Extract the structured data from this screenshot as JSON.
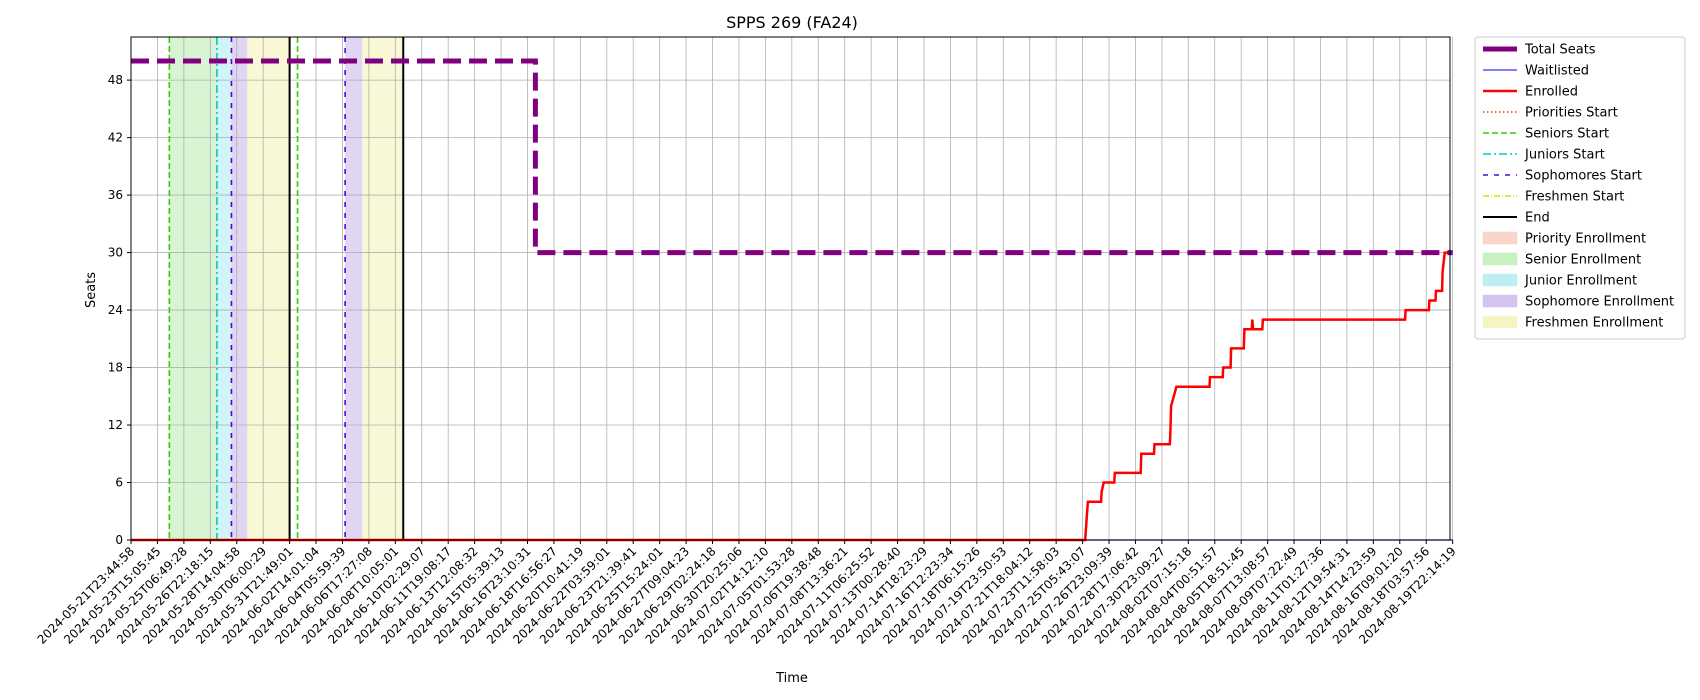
{
  "chart_data": {
    "type": "line",
    "title": "SPPS 269 (FA24)",
    "xlabel": "Time",
    "ylabel": "Seats",
    "ylim": [
      0,
      52.5
    ],
    "yticks": [
      0,
      6,
      12,
      18,
      24,
      30,
      36,
      42,
      48
    ],
    "grid": true,
    "legend_position": "outside-right",
    "x_tick_labels": [
      "2024-05-21T23:44:58",
      "2024-05-23T15:05:45",
      "2024-05-25T06:49:28",
      "2024-05-26T22:18:15",
      "2024-05-28T14:04:58",
      "2024-05-30T06:00:29",
      "2024-05-31T21:49:01",
      "2024-06-02T14:01:04",
      "2024-06-04T05:59:39",
      "2024-06-06T17:27:08",
      "2024-06-08T10:05:01",
      "2024-06-10T02:29:07",
      "2024-06-11T19:08:17",
      "2024-06-13T12:08:32",
      "2024-06-15T05:39:13",
      "2024-06-16T23:10:31",
      "2024-06-18T16:56:27",
      "2024-06-20T10:41:19",
      "2024-06-22T03:59:01",
      "2024-06-23T21:39:41",
      "2024-06-25T15:24:01",
      "2024-06-27T09:04:23",
      "2024-06-29T02:24:18",
      "2024-06-30T20:25:06",
      "2024-07-02T14:12:10",
      "2024-07-05T01:53:28",
      "2024-07-06T19:38:48",
      "2024-07-08T13:36:21",
      "2024-07-11T06:25:52",
      "2024-07-13T00:28:40",
      "2024-07-14T18:23:29",
      "2024-07-16T12:23:34",
      "2024-07-18T06:15:26",
      "2024-07-19T23:50:53",
      "2024-07-21T18:04:12",
      "2024-07-23T11:58:03",
      "2024-07-25T05:43:07",
      "2024-07-26T23:09:39",
      "2024-07-28T17:06:42",
      "2024-07-30T23:09:27",
      "2024-08-02T07:15:18",
      "2024-08-04T00:51:57",
      "2024-08-05T18:51:45",
      "2024-08-07T13:08:57",
      "2024-08-09T07:22:49",
      "2024-08-11T01:27:36",
      "2024-08-12T19:54:31",
      "2024-08-14T14:23:59",
      "2024-08-16T09:01:20",
      "2024-08-18T03:57:56",
      "2024-08-19T22:14:19"
    ],
    "x_index_range": [
      0,
      49.9
    ],
    "series": [
      {
        "name": "Total Seats",
        "color": "#800080",
        "style": "dashed-thick",
        "points": [
          [
            0,
            50
          ],
          [
            15.3,
            50
          ],
          [
            15.3,
            30
          ],
          [
            50,
            30
          ]
        ]
      },
      {
        "name": "Waitlisted",
        "color": "#0000ff",
        "style": "solid-thin",
        "points": [
          [
            0,
            0
          ],
          [
            50,
            0
          ]
        ]
      },
      {
        "name": "Enrolled",
        "color": "#ff0000",
        "style": "solid",
        "points": [
          [
            0,
            0
          ],
          [
            36.1,
            0
          ],
          [
            36.15,
            2
          ],
          [
            36.2,
            4
          ],
          [
            36.7,
            4
          ],
          [
            36.72,
            5
          ],
          [
            36.8,
            6
          ],
          [
            37.2,
            6
          ],
          [
            37.22,
            7
          ],
          [
            38.2,
            7
          ],
          [
            38.22,
            9
          ],
          [
            38.7,
            9
          ],
          [
            38.72,
            10
          ],
          [
            39.3,
            10
          ],
          [
            39.32,
            11
          ],
          [
            39.35,
            14
          ],
          [
            39.45,
            15
          ],
          [
            39.55,
            16
          ],
          [
            40.8,
            16
          ],
          [
            40.82,
            17
          ],
          [
            41.3,
            17
          ],
          [
            41.32,
            18
          ],
          [
            41.6,
            18
          ],
          [
            41.62,
            20
          ],
          [
            42.1,
            20
          ],
          [
            42.12,
            22
          ],
          [
            42.4,
            22
          ],
          [
            42.42,
            23
          ],
          [
            42.45,
            22
          ],
          [
            42.8,
            22
          ],
          [
            42.82,
            23
          ],
          [
            48.2,
            23
          ],
          [
            48.22,
            24
          ],
          [
            49.1,
            24
          ],
          [
            49.12,
            25
          ],
          [
            49.35,
            25
          ],
          [
            49.37,
            26
          ],
          [
            49.6,
            26
          ],
          [
            49.62,
            28
          ],
          [
            49.7,
            30
          ],
          [
            49.9,
            30
          ]
        ]
      }
    ],
    "vlines": [
      {
        "name": "Seniors Start",
        "x": 1.45,
        "color": "#33cc00",
        "dash": "6,3"
      },
      {
        "name": "Juniors Start",
        "x": 3.25,
        "color": "#00cccc",
        "dash": "8,3,2,3"
      },
      {
        "name": "Sophomores Start",
        "x": 3.8,
        "color": "#5500dd",
        "dash": "5,6"
      },
      {
        "name": "End",
        "x": 6.0,
        "color": "#000000",
        "dash": ""
      },
      {
        "name": "Seniors Start",
        "x": 6.3,
        "color": "#33cc00",
        "dash": "6,3"
      },
      {
        "name": "Sophomores Start",
        "x": 8.1,
        "color": "#5500dd",
        "dash": "5,6"
      },
      {
        "name": "End",
        "x": 10.3,
        "color": "#000000",
        "dash": ""
      }
    ],
    "spans": [
      {
        "name": "Senior Enrollment",
        "x0": 1.45,
        "x1": 3.25,
        "color": "#c8f0c0",
        "opacity": 0.7
      },
      {
        "name": "Junior Enrollment",
        "x0": 3.25,
        "x1": 3.8,
        "color": "#bdeff2",
        "opacity": 0.7
      },
      {
        "name": "Sophomore Enrollment",
        "x0": 3.8,
        "x1": 4.4,
        "color": "#d3c4ef",
        "opacity": 0.7
      },
      {
        "name": "Freshmen Enrollment",
        "x0": 4.4,
        "x1": 6.0,
        "color": "#f5f5c4",
        "opacity": 0.7
      },
      {
        "name": "Sophomore Enrollment",
        "x0": 8.1,
        "x1": 8.75,
        "color": "#d3c4ef",
        "opacity": 0.7
      },
      {
        "name": "Freshmen Enrollment",
        "x0": 8.75,
        "x1": 10.3,
        "color": "#f5f5c4",
        "opacity": 0.7
      }
    ],
    "legend": [
      {
        "label": "Total Seats",
        "kind": "line",
        "color": "#800080",
        "dash": "",
        "width": 5
      },
      {
        "label": "Waitlisted",
        "kind": "line",
        "color": "#0000ff",
        "dash": "",
        "width": 1
      },
      {
        "label": "Enrolled",
        "kind": "line",
        "color": "#ff0000",
        "dash": "",
        "width": 2.5
      },
      {
        "label": "Priorities Start",
        "kind": "line",
        "color": "#ff3300",
        "dash": "1.5,2.5",
        "width": 1.5
      },
      {
        "label": "Seniors Start",
        "kind": "line",
        "color": "#33cc00",
        "dash": "6,3",
        "width": 1.5
      },
      {
        "label": "Juniors Start",
        "kind": "line",
        "color": "#00cccc",
        "dash": "8,3,2,3",
        "width": 1.5
      },
      {
        "label": "Sophomores Start",
        "kind": "line",
        "color": "#5500dd",
        "dash": "5,6",
        "width": 1.5
      },
      {
        "label": "Freshmen Start",
        "kind": "line",
        "color": "#dddd00",
        "dash": "6,2,1,2",
        "width": 1.5
      },
      {
        "label": "End",
        "kind": "line",
        "color": "#000000",
        "dash": "",
        "width": 2
      },
      {
        "label": "Priority Enrollment",
        "kind": "patch",
        "color": "#f7d5c8"
      },
      {
        "label": "Senior Enrollment",
        "kind": "patch",
        "color": "#c8f0c0"
      },
      {
        "label": "Junior Enrollment",
        "kind": "patch",
        "color": "#bdeff2"
      },
      {
        "label": "Sophomore Enrollment",
        "kind": "patch",
        "color": "#d3c4ef"
      },
      {
        "label": "Freshmen Enrollment",
        "kind": "patch",
        "color": "#f5f5c4"
      }
    ]
  }
}
